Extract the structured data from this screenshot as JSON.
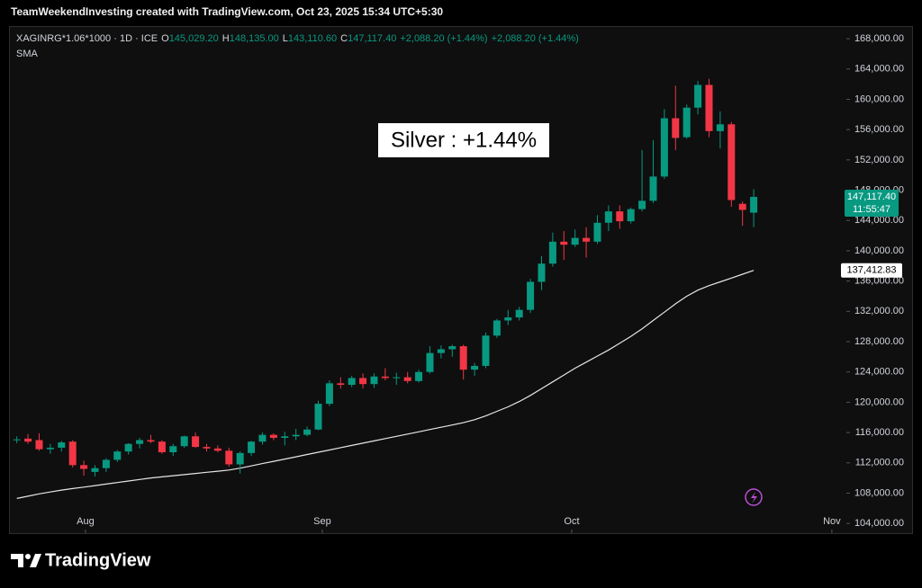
{
  "header": {
    "credit": "TeamWeekendInvesting created with TradingView.com, Oct 23, 2025 15:34 UTC+5:30"
  },
  "logo": "TradingView",
  "chart_data": {
    "type": "candlestick",
    "symbol": "XAGINRG*1.06*1000 · 1D · ICE",
    "legend_values": [
      {
        "key": "O",
        "value": "145,029.20"
      },
      {
        "key": "H",
        "value": "148,135.00"
      },
      {
        "key": "L",
        "value": "143,110.60"
      },
      {
        "key": "C",
        "value": "147,117.40"
      },
      {
        "key": "",
        "value": "+2,088.20 (+1.44%)"
      },
      {
        "key": "",
        "value": "+2,088.20 (+1.44%)"
      }
    ],
    "annotation": "Silver : +1.44%",
    "up_color": "#089981",
    "down_color": "#f23645",
    "last_price_label": "147,117.40",
    "countdown": "11:55:47",
    "open": [
      115000,
      115200,
      115000,
      113800,
      114000,
      114800,
      111700,
      110800,
      111300,
      112400,
      113500,
      114500,
      115000,
      114800,
      113400,
      114200,
      115500,
      114100,
      113900,
      113600,
      111800,
      113300,
      114800,
      115700,
      115300,
      115500,
      115700,
      116400,
      119800,
      122500,
      122300,
      123200,
      122400,
      123400,
      123200,
      123300,
      122800,
      124000,
      126500,
      127000,
      127400,
      124300,
      124800,
      128800,
      130800,
      131200,
      132200,
      135900,
      138300,
      141200,
      140800,
      141700,
      141200,
      143700,
      145200,
      143900,
      145500,
      146600,
      149800,
      157500,
      155000,
      158900,
      161900,
      155800,
      156700,
      146200,
      145029.2
    ],
    "high": [
      115500,
      115800,
      115900,
      114500,
      114900,
      115000,
      112300,
      111700,
      112600,
      113700,
      114600,
      115300,
      115700,
      115000,
      114500,
      115600,
      116000,
      114500,
      114300,
      114000,
      113500,
      114900,
      116000,
      115900,
      116100,
      116500,
      116800,
      120200,
      122900,
      123300,
      123500,
      123800,
      123800,
      124500,
      123900,
      124000,
      124300,
      127400,
      127500,
      127600,
      127600,
      125200,
      129200,
      131000,
      132200,
      132600,
      136300,
      139300,
      142400,
      142600,
      142800,
      143100,
      144700,
      146000,
      146000,
      145700,
      153300,
      154600,
      158700,
      161800,
      159300,
      162400,
      162700,
      158400,
      157000,
      146500,
      148135
    ],
    "low": [
      114600,
      114500,
      113600,
      113200,
      113500,
      111400,
      110300,
      110200,
      110800,
      112100,
      113100,
      113900,
      114600,
      113200,
      112900,
      114000,
      114000,
      113500,
      113400,
      111500,
      110600,
      112900,
      114400,
      115000,
      114300,
      115000,
      115500,
      116300,
      119500,
      121800,
      122000,
      121800,
      121900,
      122900,
      122300,
      122500,
      122600,
      123800,
      125800,
      126000,
      123000,
      123500,
      124500,
      128500,
      130200,
      130800,
      131800,
      134800,
      137900,
      138800,
      140500,
      139100,
      140900,
      142600,
      142900,
      143600,
      145200,
      146300,
      149500,
      153300,
      154800,
      158000,
      155000,
      153500,
      145800,
      143300,
      143110.6
    ],
    "close": [
      115100,
      114800,
      113800,
      114000,
      114700,
      111700,
      111200,
      111300,
      112400,
      113500,
      114500,
      115000,
      114800,
      113400,
      114200,
      115500,
      114100,
      113900,
      113600,
      111800,
      113300,
      114800,
      115700,
      115300,
      115500,
      115700,
      116400,
      119800,
      122500,
      122300,
      123200,
      122400,
      123400,
      123200,
      123300,
      122800,
      124000,
      126500,
      127000,
      127400,
      124300,
      124800,
      128800,
      130800,
      131200,
      132200,
      135900,
      138300,
      141200,
      140800,
      141700,
      141200,
      143700,
      145200,
      143900,
      145500,
      146600,
      149800,
      157500,
      154900,
      158900,
      161900,
      155800,
      156700,
      146700,
      145400,
      147117.4
    ],
    "sma": {
      "name": "SMA",
      "color": "#e6e6e6",
      "last_label": "137,412.83",
      "values": [
        107300,
        107600,
        107900,
        108150,
        108400,
        108600,
        108800,
        109000,
        109200,
        109400,
        109600,
        109800,
        110000,
        110150,
        110300,
        110450,
        110600,
        110750,
        110900,
        111050,
        111300,
        111600,
        111900,
        112200,
        112500,
        112800,
        113100,
        113400,
        113700,
        114000,
        114300,
        114600,
        114900,
        115200,
        115500,
        115800,
        116100,
        116400,
        116700,
        117000,
        117300,
        117700,
        118200,
        118800,
        119400,
        120100,
        120900,
        121800,
        122700,
        123600,
        124500,
        125300,
        126100,
        126900,
        127800,
        128700,
        129700,
        130800,
        131900,
        133000,
        134000,
        134800,
        135400,
        135900,
        136400,
        136900,
        137412.83
      ]
    },
    "xlim": [
      -0.7,
      74.3
    ],
    "xticks": [
      {
        "value": 6.15,
        "label": "Aug"
      },
      {
        "value": 27.36,
        "label": "Sep"
      },
      {
        "value": 49.7,
        "label": "Oct"
      },
      {
        "value": 73.0,
        "label": "Nov"
      }
    ],
    "ylim": [
      102716,
      169551
    ],
    "yticks": [
      {
        "value": 104000,
        "label": "104,000.00"
      },
      {
        "value": 108000,
        "label": "108,000.00"
      },
      {
        "value": 112000,
        "label": "112,000.00"
      },
      {
        "value": 116000,
        "label": "116,000.00"
      },
      {
        "value": 120000,
        "label": "120,000.00"
      },
      {
        "value": 124000,
        "label": "124,000.00"
      },
      {
        "value": 128000,
        "label": "128,000.00"
      },
      {
        "value": 132000,
        "label": "132,000.00"
      },
      {
        "value": 136000,
        "label": "136,000.00"
      },
      {
        "value": 140000,
        "label": "140,000.00"
      },
      {
        "value": 144000,
        "label": "144,000.00"
      },
      {
        "value": 148000,
        "label": "148,000.00"
      },
      {
        "value": 152000,
        "label": "152,000.00"
      },
      {
        "value": 156000,
        "label": "156,000.00"
      },
      {
        "value": 160000,
        "label": "160,000.00"
      },
      {
        "value": 164000,
        "label": "164,000.00"
      },
      {
        "value": 168000,
        "label": "168,000.00"
      }
    ],
    "grid": false
  }
}
